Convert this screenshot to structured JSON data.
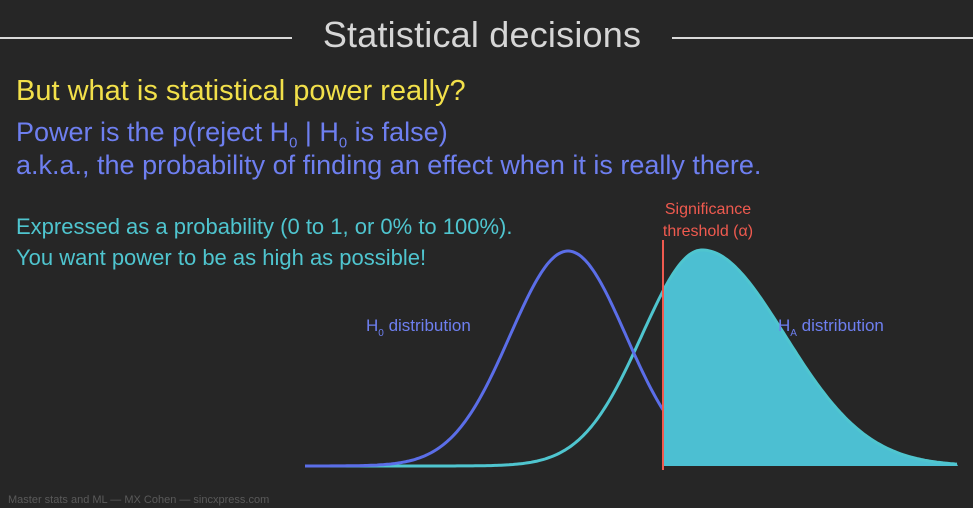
{
  "slide": {
    "title": "Statistical decisions",
    "question": "But what is statistical power really?",
    "definition_prefix": "Power is the p(reject H",
    "definition_sub1": "0",
    "definition_mid": " | H",
    "definition_sub2": "0",
    "definition_suffix": " is false)",
    "aka": "a.k.a., the probability of finding an effect when it is really there.",
    "expressed": "Expressed as a probability (0 to 1, or 0% to 100%).",
    "want": "You want power to be as high as possible!",
    "footer": "Master stats and ML — MX Cohen — sincxpress.com"
  },
  "diagram": {
    "threshold_label_line1": "Significance",
    "threshold_label_line2": "threshold (α)",
    "h0_label_prefix": "H",
    "h0_label_sub": "0",
    "h0_label_suffix": " distribution",
    "ha_label_prefix": "H",
    "ha_label_sub": "A",
    "ha_label_suffix": " distribution",
    "colors": {
      "h0_curve": "#5b6ee8",
      "ha_curve": "#4fc5cf",
      "ha_fill": "#4cbfd2",
      "threshold": "#ef5a4f",
      "label_text": "#6e7ff0",
      "threshold_text": "#ef5a4f"
    }
  }
}
